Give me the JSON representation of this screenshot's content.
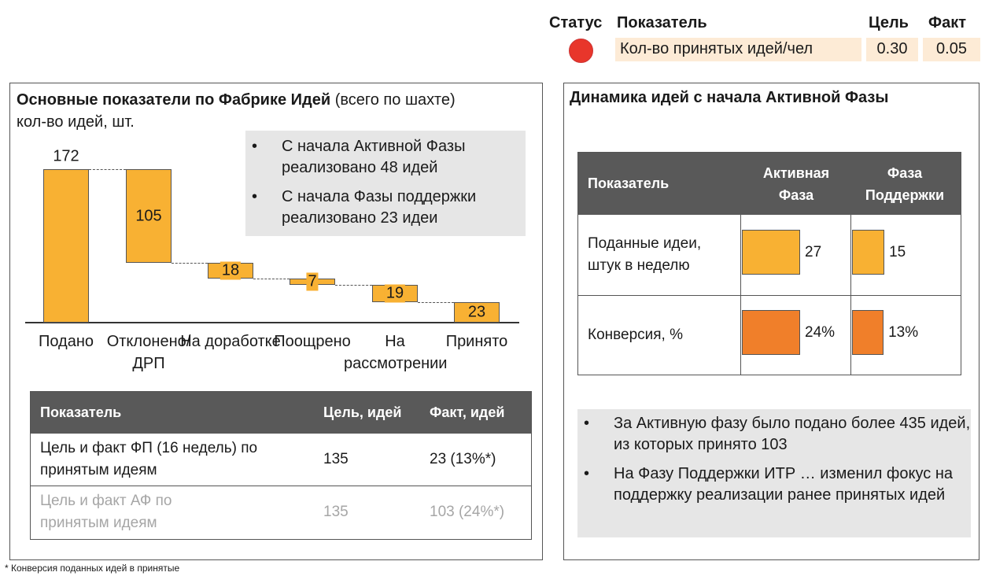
{
  "status": {
    "headers": {
      "status": "Статус",
      "indicator": "Показатель",
      "target": "Цель",
      "fact": "Факт"
    },
    "row": {
      "status_color": "#e8362b",
      "indicator": "Кол-во принятых идей/чел",
      "target": "0.30",
      "fact": "0.05"
    }
  },
  "left": {
    "title_bold": "Основные показатели по Фабрике Идей",
    "title_rest": " (всего по шахте)",
    "subtitle": "кол-во идей, шт.",
    "notes": [
      "С начала Активной Фазы реализовано 48 идей",
      "С начала Фазы поддержки реализовано 23 идеи"
    ],
    "table": {
      "headers": [
        "Показатель",
        "Цель, идей",
        "Факт, идей"
      ],
      "rows": [
        [
          "Цель и факт ФП (16 недель) по принятым идеям",
          "135",
          "23 (13%*)"
        ],
        [
          "Цель и факт АФ по принятым идеям",
          "135",
          "103 (24%*)"
        ]
      ]
    }
  },
  "chart_data": {
    "type": "waterfall",
    "categories": [
      "Подано",
      "Отклонено/ ДРП",
      "На доработке",
      "Поощрено",
      "На рассмотрении",
      "Принято"
    ],
    "values": [
      172,
      105,
      18,
      7,
      19,
      23
    ],
    "kinds": [
      "total",
      "delta",
      "delta",
      "delta",
      "delta",
      "total"
    ],
    "ylim": [
      0,
      172
    ],
    "color": "#f8b133"
  },
  "right": {
    "title": "Динамика идей с начала Активной Фазы",
    "table": {
      "headers": [
        "Показатель",
        "Активная Фаза",
        "Фаза Поддержки"
      ],
      "rows": [
        {
          "label": "Поданные идеи, штук в неделю",
          "active": 27,
          "support": 15,
          "active_text": "27",
          "support_text": "15",
          "color": "#f8b133"
        },
        {
          "label": "Конверсия, %",
          "active": 24,
          "support": 13,
          "active_text": "24%",
          "support_text": "13%",
          "color": "#f07f2a"
        }
      ]
    },
    "notes": [
      "За Активную фазу было подано более 435 идей, из которых принято 103",
      "На Фазу Поддержки ИТР … изменил фокус на поддержку реализации ранее принятых идей"
    ]
  },
  "footnote": "* Конверсия поданных идей в принятые"
}
